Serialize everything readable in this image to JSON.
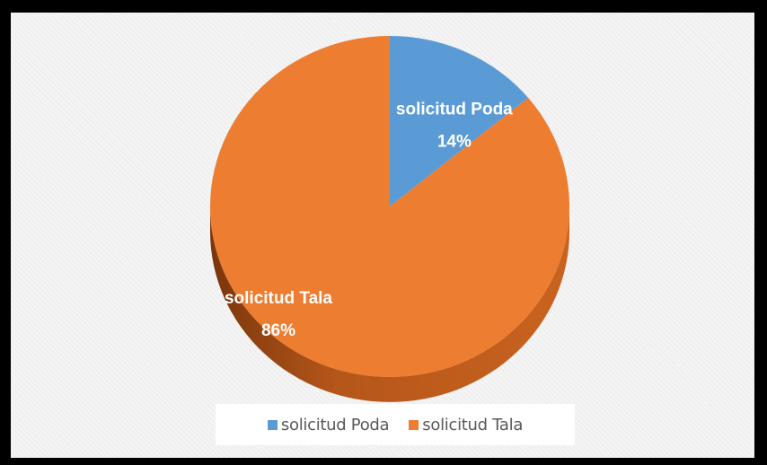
{
  "chart_data": {
    "type": "pie",
    "style": "3d",
    "categories": [
      "solicitud Poda",
      "solicitud Tala"
    ],
    "values": [
      14,
      86
    ],
    "unit": "%",
    "data_labels": [
      {
        "name": "solicitud Poda",
        "value": "14%"
      },
      {
        "name": "solicitud Tala",
        "value": "86%"
      }
    ],
    "colors": {
      "solicitud Poda": "#5b9bd5",
      "solicitud Tala": "#ed7d31",
      "solicitud Tala side": "#9e4a14",
      "solicitud Poda side": "#3f6f9c"
    },
    "legend_position": "bottom",
    "title": ""
  },
  "legend": {
    "items": [
      {
        "label": "solicitud Poda",
        "color": "#5b9bd5"
      },
      {
        "label": "solicitud Tala",
        "color": "#ed7d31"
      }
    ]
  }
}
